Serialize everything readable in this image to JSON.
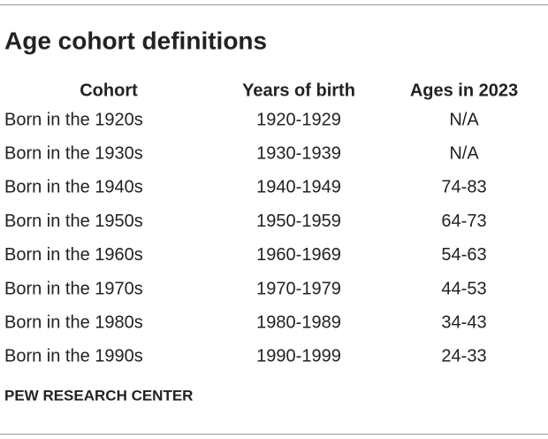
{
  "header": {
    "title": "Age cohort definitions"
  },
  "table": {
    "columns": [
      "Cohort",
      "Years of birth",
      "Ages in 2023"
    ],
    "rows": [
      [
        "Born in the 1920s",
        "1920-1929",
        "N/A"
      ],
      [
        "Born in the 1930s",
        "1930-1939",
        "N/A"
      ],
      [
        "Born in the 1940s",
        "1940-1949",
        "74-83"
      ],
      [
        "Born in the 1950s",
        "1950-1959",
        "64-73"
      ],
      [
        "Born in the 1960s",
        "1960-1969",
        "54-63"
      ],
      [
        "Born in the 1970s",
        "1970-1979",
        "44-53"
      ],
      [
        "Born in the 1980s",
        "1980-1989",
        "34-43"
      ],
      [
        "Born in the 1990s",
        "1990-1999",
        "24-33"
      ]
    ]
  },
  "footer": {
    "source": "PEW RESEARCH CENTER"
  }
}
